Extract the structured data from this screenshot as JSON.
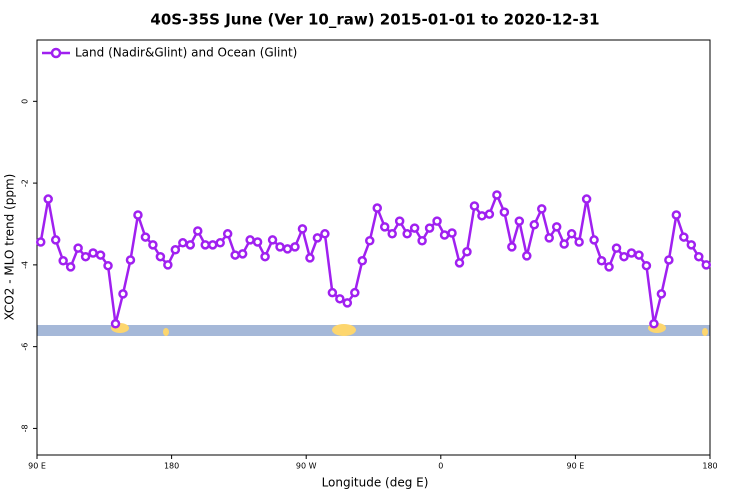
{
  "chart_data": {
    "type": "line",
    "title": "40S-35S June (Ver 10_raw)   2015-01-01 to 2020-12-31",
    "xlabel": "Longitude (deg E)",
    "ylabel": "XCO2 - MLO trend (ppm)",
    "xlim": [
      90,
      540
    ],
    "ylim": [
      -8.65,
      1.5
    ],
    "xticks": [
      {
        "value": 90,
        "label": "90 E"
      },
      180,
      {
        "value": 270,
        "label": "90 W"
      },
      {
        "value": 360,
        "label": "0"
      },
      {
        "value": 450,
        "label": "90 E"
      },
      {
        "value": 540,
        "label": "180"
      }
    ],
    "yticks": [
      0,
      -2,
      -4,
      -6,
      -8
    ],
    "legend": "upper left",
    "x": [
      92.5,
      97.5,
      102.5,
      107.5,
      112.5,
      117.5,
      122.5,
      127.5,
      132.5,
      137.5,
      142.5,
      147.5,
      152.5,
      157.5,
      162.5,
      167.5,
      172.5,
      177.5,
      182.5,
      187.5,
      192.5,
      197.5,
      202.5,
      207.5,
      212.5,
      217.5,
      222.5,
      227.5,
      232.5,
      237.5,
      242.5,
      247.5,
      252.5,
      257.5,
      262.5,
      267.5,
      272.5,
      277.5,
      282.5,
      287.5,
      292.5,
      297.5,
      302.5,
      307.5,
      312.5,
      317.5,
      322.5,
      327.5,
      332.5,
      337.5,
      342.5,
      347.5,
      352.5,
      357.5,
      362.5,
      367.5,
      372.5,
      377.5,
      382.5,
      387.5,
      392.5,
      397.5,
      402.5,
      407.5,
      412.5,
      417.5,
      422.5,
      427.5,
      432.5,
      437.5,
      442.5,
      447.5,
      452.5,
      457.5,
      462.5,
      467.5,
      472.5,
      477.5,
      482.5,
      487.5,
      492.5,
      497.5,
      502.5,
      507.5,
      512.5,
      517.5,
      522.5,
      527.5,
      532.5,
      537.5
    ],
    "series": [
      {
        "name": "Land (Nadir&Glint) and Ocean (Glint)",
        "color": "#a020f0",
        "values": [
          -3.44,
          -2.39,
          -3.39,
          -3.9,
          -4.05,
          -3.59,
          -3.8,
          -3.71,
          -3.76,
          -4.02,
          -5.44,
          -4.71,
          -3.88,
          -2.78,
          -3.32,
          -3.51,
          -3.8,
          -4.0,
          -3.63,
          -3.46,
          -3.51,
          -3.17,
          -3.51,
          -3.51,
          -3.46,
          -3.24,
          -3.76,
          -3.73,
          -3.39,
          -3.44,
          -3.8,
          -3.39,
          -3.56,
          -3.61,
          -3.56,
          -3.12,
          -3.83,
          -3.34,
          -3.24,
          -4.68,
          -4.83,
          -4.93,
          -4.68,
          -3.9,
          -3.41,
          -2.61,
          -3.07,
          -3.24,
          -2.93,
          -3.24,
          -3.1,
          -3.41,
          -3.1,
          -2.93,
          -3.27,
          -3.22,
          -3.95,
          -3.68,
          -2.56,
          -2.8,
          -2.76,
          -2.29,
          -2.71,
          -3.56,
          -2.93,
          -3.78,
          -3.02,
          -2.63,
          -3.34,
          -3.07,
          -3.49,
          -3.24,
          -3.44,
          -2.39,
          -3.39,
          -3.9,
          -4.05,
          -3.59,
          -3.8,
          -3.71,
          -3.76,
          -4.02,
          -5.44,
          -4.71,
          -3.88,
          -2.78,
          -3.32,
          -3.51,
          -3.8,
          -4.0
        ]
      }
    ]
  }
}
